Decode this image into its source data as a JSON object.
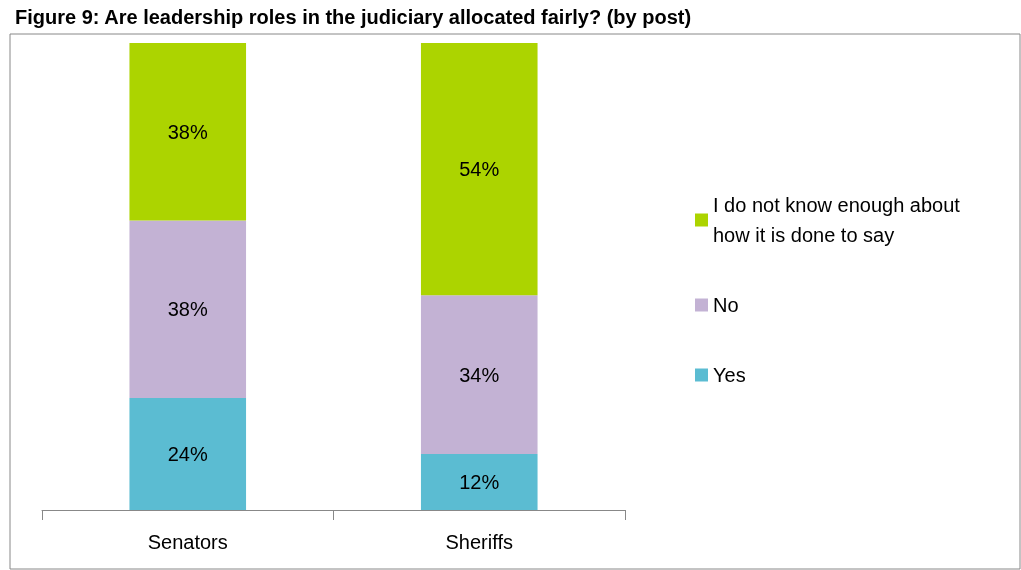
{
  "chart_data": {
    "type": "bar",
    "title": "Figure 9: Are leadership roles in the judiciary allocated fairly? (by post)",
    "categories": [
      "Senators",
      "Sheriffs"
    ],
    "stacked": true,
    "legend": "right",
    "series": [
      {
        "name": "Yes",
        "color": "#5bbcd2",
        "values": [
          24,
          12
        ],
        "value_labels": [
          "24%",
          "12%"
        ]
      },
      {
        "name": "No",
        "color": "#c3b2d4",
        "values": [
          38,
          34
        ],
        "value_labels": [
          "38%",
          "34%"
        ]
      },
      {
        "name": "I do not know enough about how it is done to say",
        "color": "#acd400",
        "values": [
          38,
          54
        ],
        "value_labels": [
          "38%",
          "54%"
        ]
      }
    ]
  }
}
